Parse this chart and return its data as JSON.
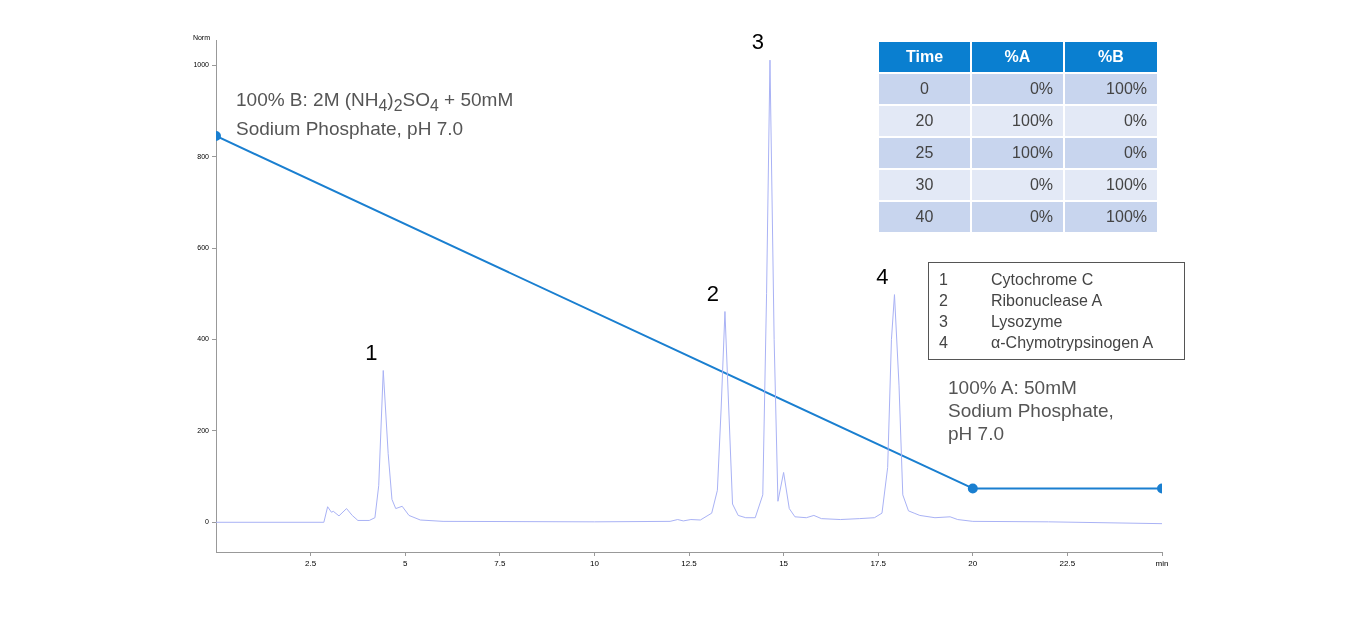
{
  "chart_data": {
    "type": "line",
    "ylabel": "Norm",
    "xlim": [
      0,
      25
    ],
    "ylim": [
      -65,
      1055
    ],
    "xticks": [
      2.5,
      5,
      7.5,
      10,
      12.5,
      15,
      17.5,
      20,
      22.5,
      {
        "value": 25,
        "label": "min"
      }
    ],
    "yticks": [
      0,
      200,
      400,
      600,
      800,
      1000
    ],
    "grid": false,
    "legend": false,
    "series": [
      {
        "type": "line",
        "color": "#a9b2f5",
        "marker": "none",
        "x": [
          0,
          2.85,
          2.95,
          3.05,
          3.1,
          3.25,
          3.45,
          3.6,
          3.75,
          4.05,
          4.2,
          4.3,
          4.42,
          4.55,
          4.65,
          4.75,
          4.92,
          5.1,
          5.4,
          6,
          10,
          12,
          12.2,
          12.35,
          12.55,
          12.8,
          13.1,
          13.25,
          13.35,
          13.45,
          13.55,
          13.65,
          13.8,
          14.0,
          14.25,
          14.45,
          14.55,
          14.64,
          14.75,
          14.85,
          15.0,
          15.15,
          15.3,
          15.6,
          15.8,
          16.0,
          16.5,
          17.0,
          17.4,
          17.6,
          17.75,
          17.85,
          17.93,
          18.05,
          18.15,
          18.3,
          18.45,
          18.6,
          19.0,
          19.4,
          19.6,
          20,
          22,
          25
        ],
        "values": [
          0,
          0,
          34,
          22,
          24,
          14,
          30,
          15,
          4,
          4,
          10,
          80,
          332,
          150,
          50,
          30,
          35,
          15,
          5,
          2,
          1,
          2,
          6,
          3,
          6,
          5,
          20,
          70,
          250,
          461,
          250,
          40,
          15,
          10,
          10,
          60,
          500,
          1011,
          400,
          46,
          109,
          30,
          12,
          10,
          15,
          8,
          6,
          8,
          10,
          20,
          120,
          400,
          498,
          300,
          60,
          25,
          20,
          15,
          10,
          12,
          6,
          2,
          1,
          -3
        ]
      },
      {
        "type": "line",
        "color": "#1a7fd0",
        "marker": "circle",
        "x": [
          0,
          20,
          25
        ],
        "values": [
          845,
          74,
          74
        ]
      }
    ],
    "annotations": [
      "100% B: 2M (NH$_{4}$)$_{2}$SO$_{4}$ + 50mM\nSodium Phosphate, pH 7.0",
      "100% A: 50mM\nSodium Phosphate,\npH 7.0",
      {
        "text": "1",
        "x": 4.42,
        "y": 332
      },
      {
        "text": "2",
        "x": 13.45,
        "y": 461
      },
      {
        "text": "3",
        "x": 14.64,
        "y": 1011
      },
      {
        "text": "4",
        "x": 17.93,
        "y": 498
      },
      "Time\t%A\t%B",
      "0\t0%\t100%",
      "20\t100%\t0%",
      "25\t100%\t0%",
      "30\t0%\t100%",
      "40\t0%\t100%",
      "1\tCytochrome C",
      "2\tRibonuclease A",
      "3\tLysozyme",
      "4\tα-Chymotrypsinogen A"
    ]
  }
}
